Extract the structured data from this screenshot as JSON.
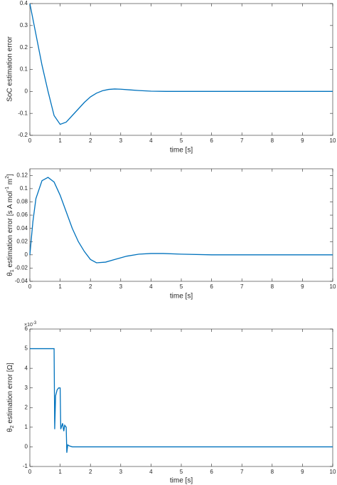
{
  "chart_data": [
    {
      "type": "line",
      "xlabel": "time [s]",
      "ylabel": "SoC estimation error",
      "xlim": [
        0,
        10
      ],
      "xticks": [
        0,
        1,
        2,
        3,
        4,
        5,
        6,
        7,
        8,
        9,
        10
      ],
      "ylim": [
        -0.2,
        0.4
      ],
      "yticks": [
        -0.2,
        -0.1,
        0,
        0.1,
        0.2,
        0.3,
        0.4
      ],
      "series": [
        {
          "color": "#0072bd",
          "x": [
            0,
            0.2,
            0.4,
            0.6,
            0.8,
            1.0,
            1.2,
            1.4,
            1.6,
            1.8,
            2.0,
            2.2,
            2.4,
            2.6,
            2.8,
            3.0,
            3.3,
            3.6,
            4.0,
            4.5,
            5,
            6,
            7,
            8,
            9,
            10
          ],
          "values": [
            0.4,
            0.26,
            0.12,
            0.0,
            -0.11,
            -0.15,
            -0.14,
            -0.11,
            -0.08,
            -0.05,
            -0.025,
            -0.008,
            0.003,
            0.009,
            0.011,
            0.01,
            0.007,
            0.004,
            0.001,
            0,
            0,
            0,
            0,
            0,
            0,
            0
          ]
        }
      ]
    },
    {
      "type": "line",
      "xlabel": "time [s]",
      "ylabel": [
        "θ",
        "1",
        " estimation error [s A mol",
        "-1",
        " m",
        "2",
        "]"
      ],
      "xlim": [
        0,
        10
      ],
      "xticks": [
        0,
        1,
        2,
        3,
        4,
        5,
        6,
        7,
        8,
        9,
        10
      ],
      "ylim": [
        -0.04,
        0.13
      ],
      "yticks": [
        -0.04,
        -0.02,
        0,
        0.02,
        0.04,
        0.06,
        0.08,
        0.1,
        0.12
      ],
      "series": [
        {
          "color": "#0072bd",
          "x": [
            0,
            0.1,
            0.2,
            0.4,
            0.6,
            0.8,
            1.0,
            1.2,
            1.4,
            1.6,
            1.8,
            2.0,
            2.2,
            2.5,
            2.8,
            3.2,
            3.6,
            4.0,
            4.4,
            5,
            6,
            7,
            8,
            9,
            10
          ],
          "values": [
            0,
            0.05,
            0.085,
            0.112,
            0.117,
            0.11,
            0.09,
            0.065,
            0.04,
            0.02,
            0.005,
            -0.007,
            -0.012,
            -0.011,
            -0.007,
            -0.002,
            0.001,
            0.002,
            0.002,
            0.001,
            0,
            0,
            0,
            0,
            0
          ]
        }
      ]
    },
    {
      "type": "line",
      "xlabel": "time [s]",
      "ylabel": [
        "θ",
        "2",
        " estimation error [Ω]"
      ],
      "yscale_label": [
        "×10",
        "-3"
      ],
      "xlim": [
        0,
        10
      ],
      "xticks": [
        0,
        1,
        2,
        3,
        4,
        5,
        6,
        7,
        8,
        9,
        10
      ],
      "ylim": [
        -1,
        6
      ],
      "yticks": [
        -1,
        0,
        1,
        2,
        3,
        4,
        5,
        6
      ],
      "series": [
        {
          "color": "#0072bd",
          "x": [
            0,
            0.8,
            0.82,
            0.85,
            0.9,
            0.95,
            1.0,
            1.02,
            1.08,
            1.12,
            1.15,
            1.2,
            1.22,
            1.25,
            1.3,
            1.4,
            10
          ],
          "values": [
            5,
            5,
            0.9,
            2.6,
            2.9,
            3.0,
            3.0,
            0.9,
            1.2,
            0.8,
            1.1,
            1.0,
            -0.3,
            0.1,
            0.05,
            0,
            0
          ]
        }
      ]
    }
  ]
}
